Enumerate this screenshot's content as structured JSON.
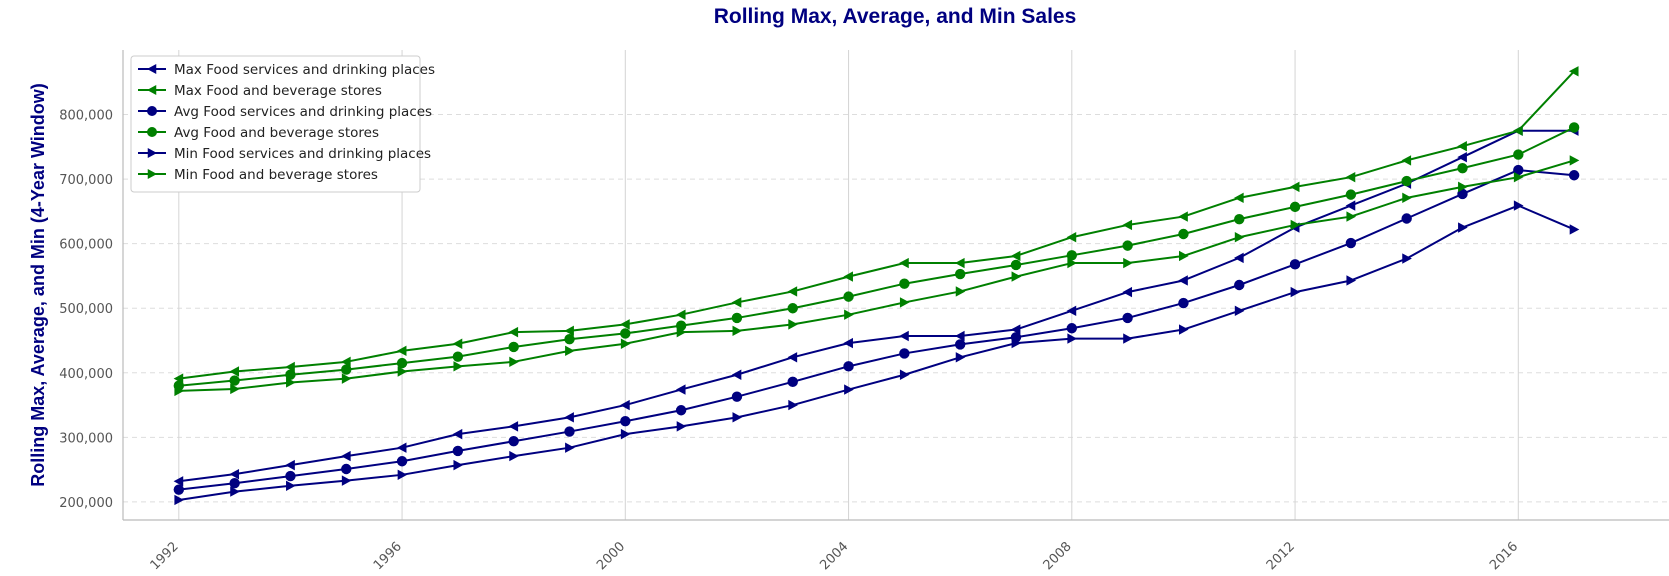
{
  "chart_data": {
    "type": "line",
    "title": "Rolling Max, Average, and Min Sales",
    "xlabel": "",
    "ylabel": "Rolling Max, Average, and Min (4-Year Window)",
    "x": [
      1992,
      1993,
      1994,
      1995,
      1996,
      1997,
      1998,
      1999,
      2000,
      2001,
      2002,
      2003,
      2004,
      2005,
      2006,
      2007,
      2008,
      2009,
      2010,
      2011,
      2012,
      2013,
      2014,
      2015,
      2016,
      2017
    ],
    "x_ticks": [
      "1992",
      "1996",
      "2000",
      "2004",
      "2008",
      "2012",
      "2016"
    ],
    "y_ticks": [
      "200,000",
      "300,000",
      "400,000",
      "500,000",
      "600,000",
      "700,000",
      "800,000"
    ],
    "xlim": [
      1991,
      2018.7
    ],
    "ylim": [
      172000,
      900000
    ],
    "grid": "vertical lines at x ticks, dashed horizontal lines at y ticks",
    "legend_position": "top-left",
    "title_color": "#000080",
    "series": [
      {
        "name": "Max Food services and drinking places",
        "color": "#000080",
        "marker": "triangle-left",
        "values": [
          232000,
          243000,
          257000,
          271000,
          284000,
          305000,
          317000,
          331000,
          350000,
          374000,
          397000,
          424000,
          446000,
          457000,
          457000,
          467000,
          496000,
          525000,
          543000,
          578000,
          625000,
          659000,
          693000,
          734000,
          775000,
          775000
        ]
      },
      {
        "name": "Max Food and beverage stores",
        "color": "#008000",
        "marker": "triangle-left",
        "values": [
          391000,
          402000,
          409000,
          417000,
          434000,
          445000,
          463000,
          465000,
          475000,
          490000,
          509000,
          526000,
          549000,
          570000,
          570000,
          581000,
          610000,
          629000,
          642000,
          671000,
          688000,
          703000,
          729000,
          751000,
          775000,
          867000
        ]
      },
      {
        "name": "Avg Food services and drinking places",
        "color": "#000080",
        "marker": "circle",
        "values": [
          219000,
          229000,
          240000,
          251000,
          263000,
          279000,
          294000,
          309000,
          325000,
          342000,
          363000,
          386000,
          410000,
          430000,
          444000,
          455000,
          469000,
          485000,
          508000,
          536000,
          568000,
          601000,
          639000,
          677000,
          714000,
          706000
        ]
      },
      {
        "name": "Avg Food and beverage stores",
        "color": "#008000",
        "marker": "circle",
        "values": [
          380000,
          388000,
          397000,
          405000,
          415000,
          425000,
          440000,
          452000,
          461000,
          473000,
          485000,
          500000,
          518000,
          538000,
          553000,
          567000,
          582000,
          597000,
          615000,
          638000,
          657000,
          676000,
          697000,
          717000,
          738000,
          780000
        ]
      },
      {
        "name": "Min Food services and drinking places",
        "color": "#000080",
        "marker": "triangle-right",
        "values": [
          203000,
          216000,
          225000,
          233000,
          242000,
          257000,
          271000,
          284000,
          305000,
          317000,
          331000,
          350000,
          374000,
          397000,
          424000,
          446000,
          453000,
          453000,
          467000,
          496000,
          525000,
          543000,
          577000,
          625000,
          659000,
          622000
        ]
      },
      {
        "name": "Min Food and beverage stores",
        "color": "#008000",
        "marker": "triangle-right",
        "values": [
          372000,
          375000,
          385000,
          391000,
          402000,
          410000,
          417000,
          434000,
          445000,
          463000,
          465000,
          475000,
          490000,
          509000,
          526000,
          549000,
          570000,
          570000,
          581000,
          610000,
          629000,
          642000,
          671000,
          688000,
          703000,
          729000
        ]
      }
    ]
  }
}
